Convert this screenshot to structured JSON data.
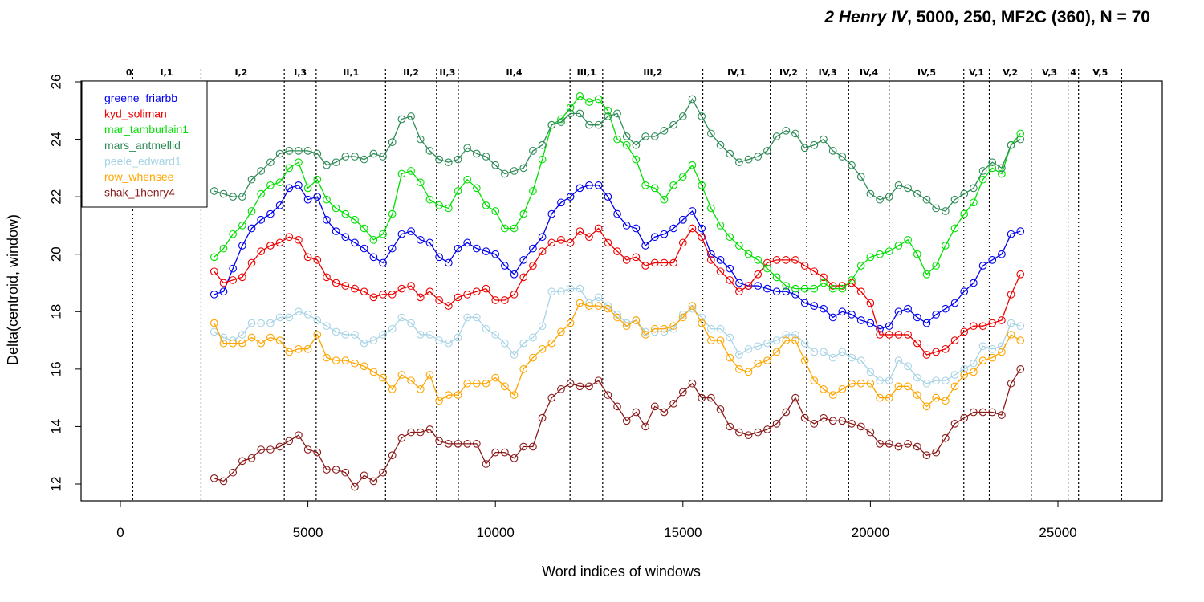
{
  "chart_data": {
    "type": "line",
    "title_italic": "2 Henry IV",
    "title_rest": ", 5000, 250, MF2C (360), N = 70",
    "xlabel": "Word indices of windows",
    "ylabel": "Delta(centroid, window)",
    "xlim": [
      -1000,
      27500
    ],
    "ylim": [
      11.6,
      26.1
    ],
    "x_ticks": [
      0,
      5000,
      10000,
      15000,
      20000,
      25000
    ],
    "y_ticks": [
      12,
      14,
      16,
      18,
      20,
      22,
      24,
      26
    ],
    "legend_position": "top-left",
    "scene_boundaries": [
      330,
      2150,
      4370,
      5220,
      7070,
      8430,
      9010,
      11990,
      12860,
      15530,
      17330,
      18300,
      19420,
      20500,
      22490,
      23170,
      24290,
      25270,
      25550,
      26700
    ],
    "scenes": [
      {
        "label": "0",
        "x": 230
      },
      {
        "label": "I,1",
        "x": 1230
      },
      {
        "label": "I,2",
        "x": 3220
      },
      {
        "label": "I,3",
        "x": 4800
      },
      {
        "label": "II,1",
        "x": 6150
      },
      {
        "label": "II,2",
        "x": 7750
      },
      {
        "label": "II,3",
        "x": 8720
      },
      {
        "label": "II,4",
        "x": 10500
      },
      {
        "label": "III,1",
        "x": 12430
      },
      {
        "label": "III,2",
        "x": 14200
      },
      {
        "label": "IV,1",
        "x": 16430
      },
      {
        "label": "IV,2",
        "x": 17820
      },
      {
        "label": "IV,3",
        "x": 18860
      },
      {
        "label": "IV,4",
        "x": 19960
      },
      {
        "label": "IV,5",
        "x": 21500
      },
      {
        "label": "V,1",
        "x": 22830
      },
      {
        "label": "V,2",
        "x": 23730
      },
      {
        "label": "V,3",
        "x": 24780
      },
      {
        "label": "4",
        "x": 25410
      },
      {
        "label": "V,5",
        "x": 26130
      }
    ],
    "x": [
      2500,
      2750,
      3000,
      3250,
      3500,
      3750,
      4000,
      4250,
      4500,
      4750,
      5000,
      5250,
      5500,
      5750,
      6000,
      6250,
      6500,
      6750,
      7000,
      7250,
      7500,
      7750,
      8000,
      8250,
      8500,
      8750,
      9000,
      9250,
      9500,
      9750,
      10000,
      10250,
      10500,
      10750,
      11000,
      11250,
      11500,
      11750,
      12000,
      12250,
      12500,
      12750,
      13000,
      13250,
      13500,
      13750,
      14000,
      14250,
      14500,
      14750,
      15000,
      15250,
      15500,
      15750,
      16000,
      16250,
      16500,
      16750,
      17000,
      17250,
      17500,
      17750,
      18000,
      18250,
      18500,
      18750,
      19000,
      19250,
      19500,
      19750,
      20000,
      20250,
      20500,
      20750,
      21000,
      21250,
      21500,
      21750,
      22000,
      22250,
      22500,
      22750,
      23000,
      23250,
      23500,
      23750,
      24000
    ],
    "series": [
      {
        "name": "greene_friarbb",
        "color": "#0000ee",
        "values": [
          18.6,
          18.7,
          19.5,
          20.3,
          20.9,
          21.2,
          21.4,
          21.7,
          22.3,
          22.4,
          21.9,
          22.0,
          21.2,
          20.8,
          20.6,
          20.4,
          20.2,
          19.9,
          19.7,
          20.2,
          20.7,
          20.8,
          20.5,
          20.4,
          19.9,
          19.7,
          20.2,
          20.4,
          20.2,
          20.1,
          20.0,
          19.6,
          19.3,
          19.8,
          20.2,
          20.6,
          21.4,
          21.8,
          22.0,
          22.3,
          22.4,
          22.4,
          22.0,
          21.4,
          21.0,
          20.9,
          20.3,
          20.6,
          20.7,
          20.9,
          21.2,
          21.5,
          20.9,
          20.0,
          19.8,
          19.5,
          19.0,
          18.9,
          18.9,
          18.8,
          18.7,
          18.7,
          18.6,
          18.3,
          18.2,
          18.1,
          17.8,
          18.0,
          17.9,
          17.7,
          17.6,
          17.4,
          17.5,
          18.0,
          18.1,
          17.8,
          17.6,
          17.9,
          18.1,
          18.3,
          18.7,
          19.0,
          19.6,
          19.8,
          20.0,
          20.7,
          20.8
        ]
      },
      {
        "name": "kyd_soliman",
        "color": "#ee0000",
        "values": [
          19.4,
          19.0,
          19.1,
          19.2,
          19.7,
          20.1,
          20.3,
          20.4,
          20.6,
          20.5,
          19.9,
          19.8,
          19.2,
          19.0,
          18.9,
          18.8,
          18.7,
          18.5,
          18.6,
          18.6,
          18.8,
          18.9,
          18.5,
          18.7,
          18.4,
          18.2,
          18.5,
          18.6,
          18.7,
          18.8,
          18.4,
          18.4,
          18.6,
          19.2,
          19.6,
          20.1,
          20.4,
          20.5,
          20.4,
          20.8,
          20.6,
          20.9,
          20.4,
          20.1,
          19.8,
          19.9,
          19.6,
          19.7,
          19.7,
          19.7,
          20.4,
          20.9,
          20.6,
          19.8,
          19.4,
          19.1,
          18.7,
          18.9,
          19.3,
          19.7,
          19.8,
          19.8,
          19.8,
          19.6,
          19.4,
          19.2,
          18.9,
          18.9,
          19.0,
          18.7,
          18.3,
          17.2,
          17.2,
          17.2,
          17.2,
          16.9,
          16.5,
          16.6,
          16.7,
          17.0,
          17.3,
          17.5,
          17.5,
          17.6,
          17.7,
          18.6,
          19.3
        ]
      },
      {
        "name": "mar_tamburlain1",
        "color": "#00e000",
        "values": [
          19.9,
          20.2,
          20.7,
          21.0,
          21.5,
          22.1,
          22.4,
          22.5,
          23.0,
          23.2,
          22.3,
          22.6,
          21.9,
          21.6,
          21.4,
          21.2,
          20.9,
          20.5,
          20.7,
          21.4,
          22.8,
          22.9,
          22.5,
          21.9,
          21.7,
          21.6,
          22.2,
          22.6,
          22.3,
          21.7,
          21.5,
          20.9,
          20.9,
          21.4,
          22.2,
          23.3,
          24.5,
          24.7,
          25.1,
          25.5,
          25.3,
          25.4,
          25.0,
          24.0,
          23.8,
          23.3,
          22.4,
          22.3,
          21.9,
          22.4,
          22.7,
          23.1,
          22.4,
          21.6,
          21.0,
          20.6,
          20.3,
          20.0,
          19.8,
          19.5,
          19.2,
          18.9,
          18.8,
          18.8,
          18.8,
          19.0,
          18.8,
          18.8,
          19.1,
          19.6,
          19.9,
          20.0,
          20.1,
          20.3,
          20.5,
          20.0,
          19.3,
          19.6,
          20.3,
          20.9,
          21.4,
          21.8,
          22.6,
          23.0,
          22.8,
          23.8,
          24.2
        ]
      },
      {
        "name": "mars_antmellid",
        "color": "#2e8b57",
        "values": [
          22.2,
          22.1,
          22.0,
          22.0,
          22.6,
          22.9,
          23.2,
          23.5,
          23.6,
          23.6,
          23.6,
          23.5,
          23.1,
          23.2,
          23.4,
          23.4,
          23.3,
          23.5,
          23.4,
          23.9,
          24.7,
          24.8,
          24.0,
          23.6,
          23.3,
          23.2,
          23.3,
          23.7,
          23.5,
          23.4,
          23.1,
          22.8,
          22.9,
          23.0,
          23.6,
          23.8,
          24.5,
          24.6,
          24.9,
          24.9,
          24.5,
          24.5,
          24.8,
          24.9,
          24.1,
          23.8,
          24.1,
          24.1,
          24.3,
          24.5,
          24.8,
          25.4,
          24.8,
          24.2,
          23.8,
          23.5,
          23.2,
          23.3,
          23.4,
          23.6,
          24.1,
          24.3,
          24.2,
          23.7,
          23.8,
          24.0,
          23.6,
          23.4,
          23.1,
          22.7,
          22.1,
          21.9,
          22.0,
          22.4,
          22.3,
          22.1,
          21.9,
          21.6,
          21.5,
          21.9,
          22.1,
          22.3,
          22.9,
          23.2,
          23.0,
          23.8,
          24.0
        ]
      },
      {
        "name": "peele_edward1",
        "color": "#a8d4e6",
        "values": [
          17.3,
          17.1,
          17.0,
          17.2,
          17.6,
          17.6,
          17.6,
          17.8,
          17.8,
          18.0,
          17.9,
          17.7,
          17.5,
          17.3,
          17.2,
          17.2,
          16.9,
          17.0,
          17.2,
          17.4,
          17.8,
          17.6,
          17.2,
          17.2,
          17.0,
          16.9,
          17.1,
          17.8,
          17.8,
          17.4,
          17.2,
          16.9,
          16.5,
          16.9,
          17.1,
          17.5,
          18.7,
          18.7,
          18.8,
          18.8,
          18.3,
          18.5,
          18.2,
          17.9,
          17.6,
          17.7,
          17.3,
          17.3,
          17.3,
          17.4,
          17.9,
          18.1,
          17.8,
          17.4,
          17.4,
          17.1,
          16.5,
          16.7,
          16.8,
          16.9,
          17.0,
          17.2,
          17.2,
          16.9,
          16.6,
          16.6,
          16.4,
          16.6,
          16.4,
          16.3,
          15.9,
          15.6,
          15.6,
          16.3,
          16.1,
          15.7,
          15.5,
          15.6,
          15.6,
          15.8,
          16.0,
          16.2,
          16.8,
          16.7,
          16.8,
          17.6,
          17.5
        ]
      },
      {
        "name": "row_whensee",
        "color": "#ffa500",
        "values": [
          17.6,
          16.9,
          16.9,
          16.9,
          17.1,
          16.9,
          17.1,
          17.0,
          16.6,
          16.7,
          16.7,
          17.2,
          16.4,
          16.3,
          16.3,
          16.2,
          16.1,
          15.9,
          15.7,
          15.3,
          15.8,
          15.6,
          15.3,
          15.8,
          14.9,
          15.1,
          15.1,
          15.5,
          15.5,
          15.5,
          15.7,
          15.4,
          15.1,
          16.0,
          16.4,
          16.7,
          16.9,
          17.3,
          17.6,
          18.3,
          18.2,
          18.2,
          18.1,
          17.8,
          17.5,
          17.7,
          17.2,
          17.4,
          17.4,
          17.5,
          17.8,
          18.2,
          17.6,
          17.0,
          17.0,
          16.4,
          16.0,
          15.9,
          16.2,
          16.3,
          16.6,
          17.0,
          17.0,
          16.3,
          15.6,
          15.3,
          15.1,
          15.3,
          15.5,
          15.5,
          15.5,
          15.0,
          15.0,
          15.4,
          15.4,
          15.1,
          14.7,
          15.0,
          14.9,
          15.4,
          15.8,
          15.9,
          16.3,
          16.4,
          16.6,
          17.2,
          17.0
        ]
      },
      {
        "name": "shak_1henry4",
        "color": "#8b1a1a",
        "values": [
          12.2,
          12.1,
          12.4,
          12.8,
          12.9,
          13.2,
          13.2,
          13.3,
          13.5,
          13.7,
          13.2,
          13.1,
          12.5,
          12.5,
          12.4,
          11.9,
          12.3,
          12.1,
          12.4,
          13.0,
          13.6,
          13.8,
          13.8,
          13.9,
          13.5,
          13.4,
          13.4,
          13.4,
          13.4,
          12.7,
          13.1,
          13.1,
          12.9,
          13.3,
          13.3,
          14.3,
          15.0,
          15.3,
          15.5,
          15.4,
          15.4,
          15.6,
          15.1,
          14.7,
          14.2,
          14.5,
          14.0,
          14.7,
          14.5,
          14.8,
          15.2,
          15.5,
          15.0,
          15.0,
          14.6,
          14.0,
          13.8,
          13.7,
          13.8,
          13.9,
          14.1,
          14.5,
          15.0,
          14.3,
          14.1,
          14.3,
          14.2,
          14.2,
          14.1,
          14.0,
          13.8,
          13.4,
          13.4,
          13.3,
          13.4,
          13.3,
          13.0,
          13.1,
          13.6,
          14.1,
          14.3,
          14.5,
          14.5,
          14.5,
          14.4,
          15.5,
          16.0
        ]
      }
    ]
  }
}
